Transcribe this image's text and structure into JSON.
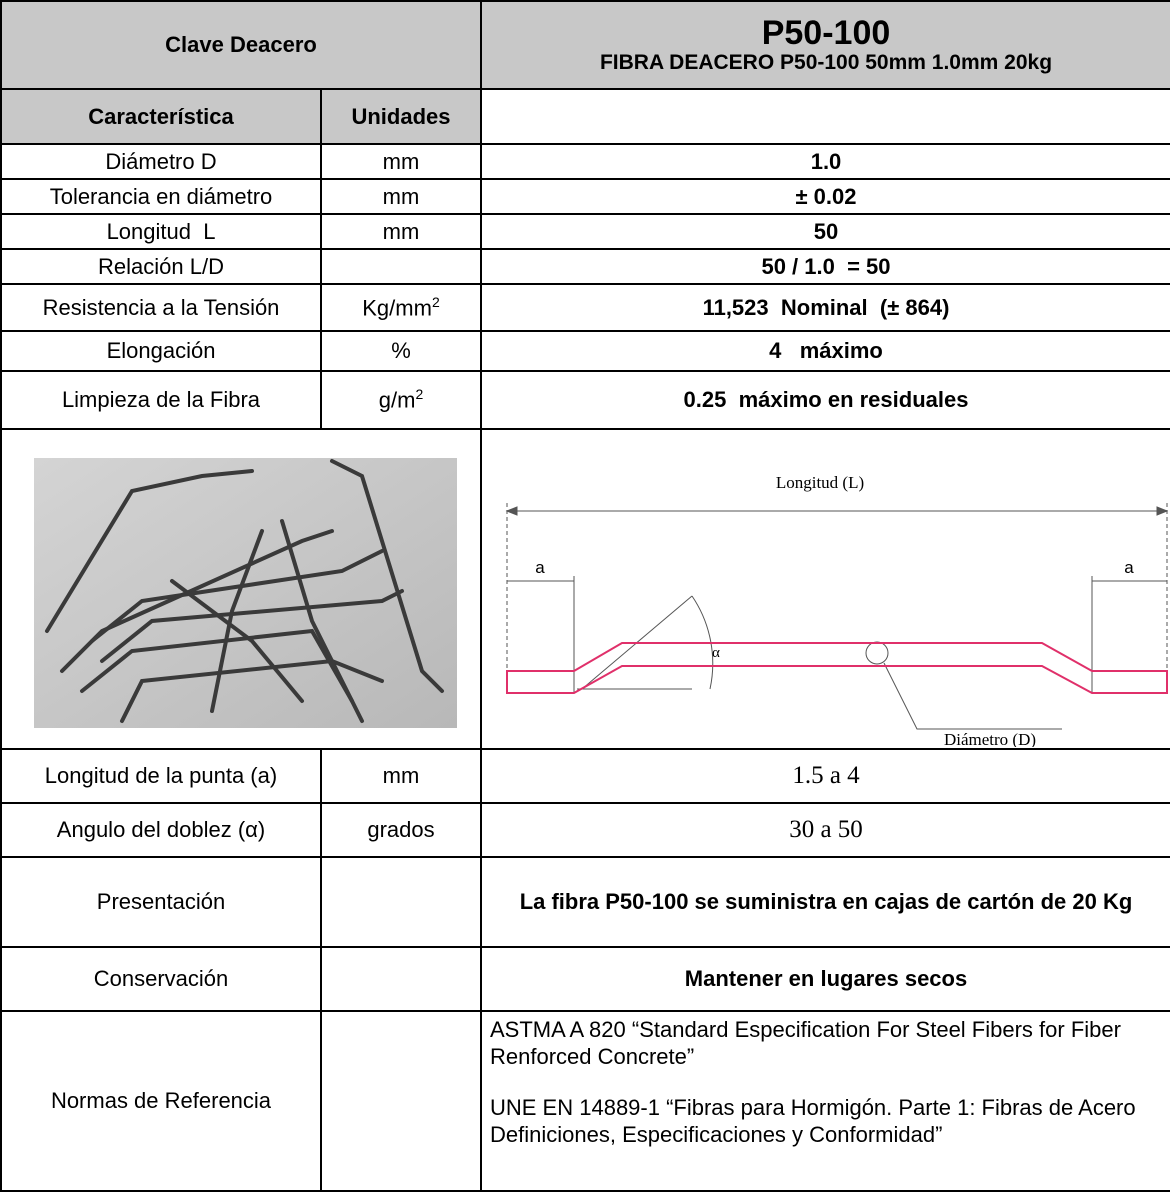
{
  "header": {
    "key_label": "Clave Deacero",
    "code": "P50-100",
    "description": "FIBRA DEACERO P50-100 50mm 1.0mm 20kg"
  },
  "table": {
    "columns": [
      "Característica",
      "Unidades"
    ],
    "rows": [
      {
        "name": "Diámetro D",
        "unit": "mm",
        "value": "1.0"
      },
      {
        "name": "Tolerancia en diámetro",
        "unit": "mm",
        "value": "± 0.02"
      },
      {
        "name": "Longitud  L",
        "unit": "mm",
        "value": "50"
      },
      {
        "name": "Relación L/D",
        "value": "50 / 1.0  = 50"
      },
      {
        "name": "Resistencia a la Tensión",
        "unit": "Kg/mm",
        "unit_sup": "2",
        "value": "11,523  Nominal  (± 864)"
      },
      {
        "name": "Elongación",
        "unit": "%",
        "value": "4   máximo"
      },
      {
        "name": "Limpieza de la Fibra",
        "unit": "g/m",
        "unit_sup": "2",
        "value": "0.25  máximo en residuales"
      }
    ],
    "diagram": {
      "length_label": "Longitud (L)",
      "tip_left": "a",
      "tip_right": "a",
      "angle": "α",
      "diameter_label": "Diámetro (D)"
    },
    "lower_rows": [
      {
        "name": "Longitud de la punta (a)",
        "unit": "mm",
        "value": "1.5 a 4"
      },
      {
        "name": "Angulo del doblez (α)",
        "unit": "grados",
        "value": "30 a 50"
      },
      {
        "name": "Presentación",
        "value": "La fibra P50-100 se suministra en cajas de cartón de 20 Kg"
      },
      {
        "name": "Conservación",
        "value": "Mantener en lugares secos"
      },
      {
        "name": "Normas de Referencia",
        "values": [
          "ASTMA A 820 “Standard Especification For Steel Fibers for Fiber Renforced Concrete”",
          "UNE EN 14889-1  “Fibras para Hormigón. Parte 1: Fibras de Acero Definiciones, Especificaciones y Conformidad”"
        ]
      }
    ]
  }
}
